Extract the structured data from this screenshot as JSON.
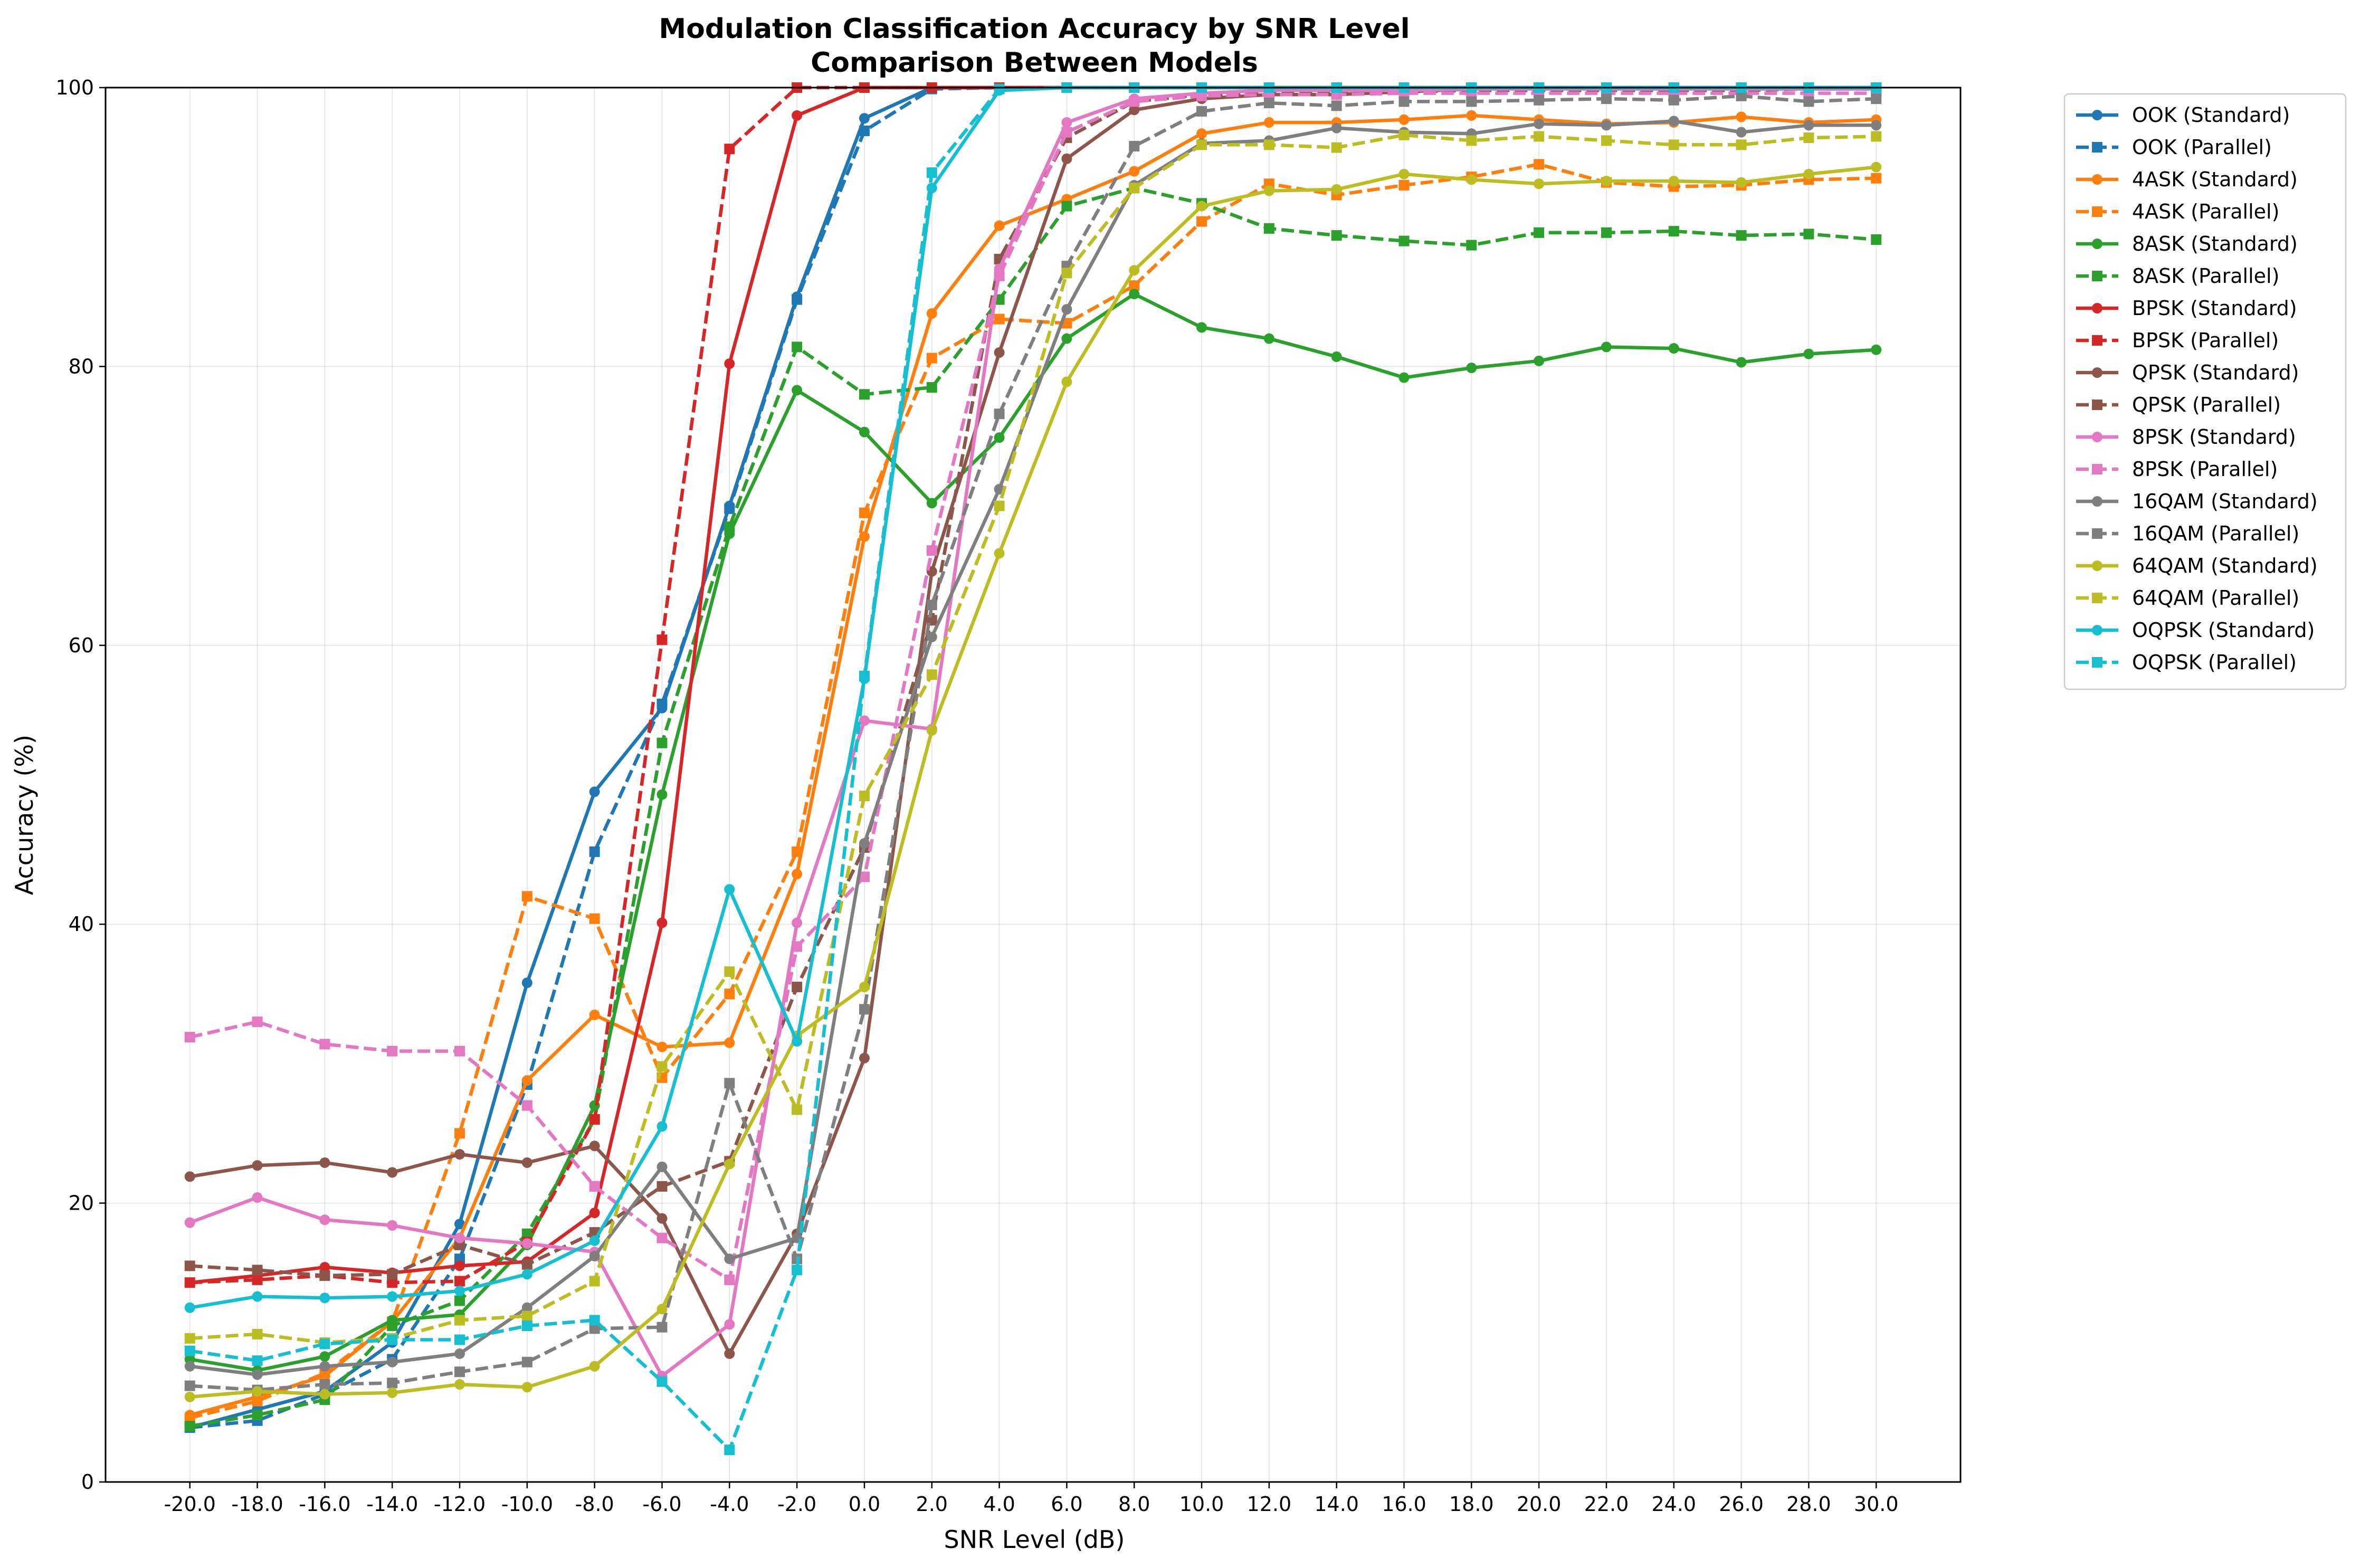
{
  "chart_data": {
    "type": "line",
    "title": "Modulation Classification Accuracy by SNR Level",
    "subtitle": "Comparison Between Models",
    "xlabel": "SNR Level (dB)",
    "ylabel": "Accuracy (%)",
    "ylim": [
      0,
      100
    ],
    "grid": true,
    "legend_placement": "outside-right",
    "x": [
      -20,
      -18,
      -16,
      -14,
      -12,
      -10,
      -8,
      -6,
      -4,
      -2,
      0,
      2,
      4,
      6,
      8,
      10,
      12,
      14,
      16,
      18,
      20,
      22,
      24,
      26,
      28,
      30
    ],
    "x_tick_labels": [
      "-20.0",
      "-18.0",
      "-16.0",
      "-14.0",
      "-12.0",
      "-10.0",
      "-8.0",
      "-6.0",
      "-4.0",
      "-2.0",
      "0.0",
      "2.0",
      "4.0",
      "6.0",
      "8.0",
      "10.0",
      "12.0",
      "14.0",
      "16.0",
      "18.0",
      "20.0",
      "22.0",
      "24.0",
      "26.0",
      "28.0",
      "30.0"
    ],
    "y_ticks": [
      0,
      20,
      40,
      60,
      80,
      100
    ],
    "y_tick_labels": [
      "0",
      "20",
      "40",
      "60",
      "80",
      "100"
    ],
    "series": [
      {
        "name": "OOK (Standard)",
        "color": "#1f77b4",
        "dash": false,
        "marker": "circle",
        "values": [
          3.9,
          5.2,
          6.5,
          10.0,
          18.5,
          35.8,
          49.5,
          55.5,
          70.0,
          85.0,
          97.8,
          100,
          100,
          100,
          100,
          100,
          100,
          100,
          100,
          100,
          100,
          100,
          100,
          100,
          100,
          100
        ]
      },
      {
        "name": "OOK (Parallel)",
        "color": "#1f77b4",
        "dash": true,
        "marker": "square",
        "values": [
          3.9,
          4.4,
          6.3,
          8.8,
          16.0,
          28.5,
          45.2,
          55.8,
          69.8,
          84.8,
          96.9,
          99.9,
          100,
          100,
          100,
          100,
          100,
          100,
          100,
          100,
          100,
          100,
          100,
          100,
          100,
          100
        ]
      },
      {
        "name": "4ASK (Standard)",
        "color": "#ff7f0e",
        "dash": false,
        "marker": "circle",
        "values": [
          4.8,
          6.1,
          7.6,
          11.5,
          17.5,
          28.8,
          33.5,
          31.2,
          31.5,
          43.6,
          67.8,
          83.8,
          90.1,
          92.0,
          94.0,
          96.7,
          97.5,
          97.5,
          97.7,
          98.0,
          97.7,
          97.4,
          97.5,
          97.9,
          97.5,
          97.7
        ]
      },
      {
        "name": "4ASK (Parallel)",
        "color": "#ff7f0e",
        "dash": true,
        "marker": "square",
        "values": [
          4.6,
          5.8,
          7.8,
          11.5,
          25.0,
          42.0,
          40.4,
          29.0,
          35.0,
          45.2,
          69.5,
          80.6,
          83.4,
          83.1,
          85.8,
          90.4,
          93.1,
          92.3,
          93.0,
          93.6,
          94.5,
          93.2,
          92.9,
          93.0,
          93.4,
          93.5
        ]
      },
      {
        "name": "8ASK (Standard)",
        "color": "#2ca02c",
        "dash": false,
        "marker": "circle",
        "values": [
          8.8,
          8.0,
          9.0,
          11.6,
          12.0,
          17.0,
          27.0,
          49.3,
          68.0,
          78.3,
          75.3,
          70.2,
          74.9,
          82.0,
          85.2,
          82.8,
          82.0,
          80.7,
          79.2,
          79.9,
          80.4,
          81.4,
          81.3,
          80.3,
          80.9,
          81.2
        ]
      },
      {
        "name": "8ASK (Parallel)",
        "color": "#2ca02c",
        "dash": true,
        "marker": "square",
        "values": [
          4.0,
          4.8,
          5.9,
          11.2,
          13.0,
          17.8,
          26.0,
          53.0,
          68.5,
          81.4,
          78.0,
          78.5,
          84.8,
          91.5,
          92.8,
          91.7,
          89.9,
          89.4,
          89.0,
          88.7,
          89.6,
          89.6,
          89.7,
          89.4,
          89.5,
          89.1
        ]
      },
      {
        "name": "BPSK (Standard)",
        "color": "#d62728",
        "dash": false,
        "marker": "circle",
        "values": [
          14.3,
          14.8,
          15.4,
          15.0,
          15.5,
          15.8,
          19.3,
          40.1,
          80.2,
          98.0,
          100,
          100,
          100,
          100,
          100,
          100,
          100,
          100,
          100,
          100,
          100,
          100,
          100,
          100,
          100,
          100
        ]
      },
      {
        "name": "BPSK (Parallel)",
        "color": "#d62728",
        "dash": true,
        "marker": "square",
        "values": [
          14.3,
          14.5,
          14.8,
          14.3,
          14.4,
          17.2,
          26.0,
          60.4,
          95.6,
          100,
          100,
          100,
          100,
          100,
          100,
          100,
          100,
          100,
          100,
          100,
          100,
          100,
          100,
          100,
          100,
          100
        ]
      },
      {
        "name": "QPSK (Standard)",
        "color": "#8c564b",
        "dash": false,
        "marker": "circle",
        "values": [
          21.9,
          22.7,
          22.9,
          22.2,
          23.5,
          22.9,
          24.1,
          18.9,
          9.2,
          17.8,
          30.4,
          65.3,
          81.0,
          94.9,
          98.4,
          99.2,
          99.5,
          99.5,
          99.7,
          99.9,
          100,
          100,
          100,
          100,
          100,
          100
        ]
      },
      {
        "name": "QPSK (Parallel)",
        "color": "#8c564b",
        "dash": true,
        "marker": "square",
        "values": [
          15.5,
          15.2,
          14.8,
          14.9,
          17.0,
          15.6,
          17.9,
          21.2,
          23.0,
          35.5,
          45.5,
          61.8,
          87.7,
          96.4,
          99.0,
          99.5,
          99.6,
          99.6,
          99.7,
          99.8,
          99.8,
          99.8,
          99.8,
          99.8,
          99.9,
          99.9
        ]
      },
      {
        "name": "8PSK (Standard)",
        "color": "#e377c2",
        "dash": false,
        "marker": "circle",
        "values": [
          18.6,
          20.4,
          18.8,
          18.4,
          17.5,
          17.1,
          16.5,
          7.6,
          11.3,
          40.1,
          54.6,
          54.0,
          87.0,
          97.5,
          99.2,
          99.6,
          99.8,
          99.8,
          99.8,
          99.9,
          99.9,
          99.9,
          99.9,
          99.9,
          99.9,
          99.9
        ]
      },
      {
        "name": "8PSK (Parallel)",
        "color": "#e377c2",
        "dash": true,
        "marker": "square",
        "values": [
          31.9,
          33.0,
          31.4,
          30.9,
          30.9,
          27.0,
          21.2,
          17.5,
          14.5,
          38.4,
          43.4,
          66.8,
          86.5,
          96.8,
          99.0,
          99.4,
          99.5,
          99.5,
          99.6,
          99.6,
          99.6,
          99.6,
          99.6,
          99.6,
          99.6,
          99.6
        ]
      },
      {
        "name": "16QAM (Standard)",
        "color": "#7f7f7f",
        "dash": false,
        "marker": "circle",
        "values": [
          8.3,
          7.7,
          8.3,
          8.6,
          9.2,
          12.5,
          16.2,
          22.6,
          16.0,
          17.5,
          45.8,
          60.6,
          71.2,
          84.1,
          93.0,
          96.0,
          96.2,
          97.1,
          96.8,
          96.7,
          97.4,
          97.3,
          97.6,
          96.8,
          97.3,
          97.3
        ]
      },
      {
        "name": "16QAM (Parallel)",
        "color": "#7f7f7f",
        "dash": true,
        "marker": "square",
        "values": [
          6.9,
          6.6,
          7.0,
          7.1,
          7.9,
          8.6,
          11.0,
          11.1,
          28.6,
          16.0,
          33.9,
          62.9,
          76.6,
          87.2,
          95.8,
          98.3,
          98.9,
          98.7,
          99.0,
          99.0,
          99.1,
          99.2,
          99.1,
          99.4,
          99.0,
          99.2
        ]
      },
      {
        "name": "64QAM (Standard)",
        "color": "#bcbd22",
        "dash": false,
        "marker": "circle",
        "values": [
          6.1,
          6.5,
          6.3,
          6.4,
          7.0,
          6.8,
          8.3,
          12.4,
          22.8,
          32.0,
          35.5,
          53.9,
          66.6,
          78.9,
          86.9,
          91.5,
          92.6,
          92.7,
          93.8,
          93.4,
          93.1,
          93.3,
          93.3,
          93.2,
          93.8,
          94.3
        ]
      },
      {
        "name": "64QAM (Parallel)",
        "color": "#bcbd22",
        "dash": true,
        "marker": "square",
        "values": [
          10.3,
          10.6,
          10.0,
          10.3,
          11.6,
          11.9,
          14.4,
          29.8,
          36.6,
          26.7,
          49.2,
          57.9,
          70.0,
          86.7,
          92.8,
          95.9,
          95.9,
          95.7,
          96.6,
          96.2,
          96.5,
          96.2,
          95.9,
          95.9,
          96.4,
          96.5
        ]
      },
      {
        "name": "OQPSK (Standard)",
        "color": "#17becf",
        "dash": false,
        "marker": "circle",
        "values": [
          12.5,
          13.3,
          13.2,
          13.3,
          13.7,
          14.9,
          17.3,
          25.5,
          42.5,
          31.6,
          57.6,
          92.8,
          99.8,
          100,
          100,
          100,
          100,
          100,
          100,
          100,
          100,
          100,
          100,
          100,
          100,
          100
        ]
      },
      {
        "name": "OQPSK (Parallel)",
        "color": "#17becf",
        "dash": true,
        "marker": "square",
        "values": [
          9.4,
          8.7,
          9.9,
          10.2,
          10.2,
          11.2,
          11.6,
          7.2,
          2.3,
          15.2,
          57.8,
          93.9,
          99.9,
          100,
          100,
          100,
          100,
          100,
          100,
          100,
          100,
          100,
          100,
          100,
          100,
          100
        ]
      }
    ]
  }
}
